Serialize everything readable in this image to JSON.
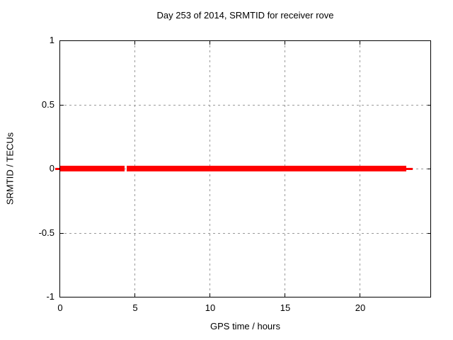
{
  "window": {
    "background": "#ffffff"
  },
  "colors": {
    "series_red": "#ff0000",
    "grid": "#9a9a9a",
    "axis": "#000000",
    "background": "#ffffff"
  },
  "chart_data": {
    "type": "line",
    "title": "Day 253 of 2014, SRMTID for receiver rove",
    "xlabel": "GPS time / hours",
    "ylabel": "SRMTID / TECUs",
    "xlim": [
      0,
      24.76
    ],
    "ylim": [
      -1,
      1
    ],
    "xticks": [
      0,
      5,
      10,
      15,
      20
    ],
    "xtick_labels": [
      "0",
      "5",
      "10",
      "15",
      "20"
    ],
    "yticks": [
      -1,
      -0.5,
      0,
      0.5,
      1
    ],
    "ytick_labels": [
      "-1",
      "-0.5",
      "0",
      "0.5",
      "1"
    ],
    "grid": true,
    "grid_style": "dashed",
    "legend": false,
    "series": [
      {
        "name": "SRMTID",
        "color": "#ff0000",
        "y_value": 0,
        "segments": [
          {
            "x1": -0.28,
            "x2": 0,
            "style": "thin"
          },
          {
            "x1": 0,
            "x2": 4.34,
            "style": "thick"
          },
          {
            "x1": 4.48,
            "x2": 23.11,
            "style": "thick"
          },
          {
            "x1": 23.11,
            "x2": 23.54,
            "style": "thin"
          }
        ],
        "gap_x": [
          4.34,
          4.48
        ]
      }
    ]
  }
}
